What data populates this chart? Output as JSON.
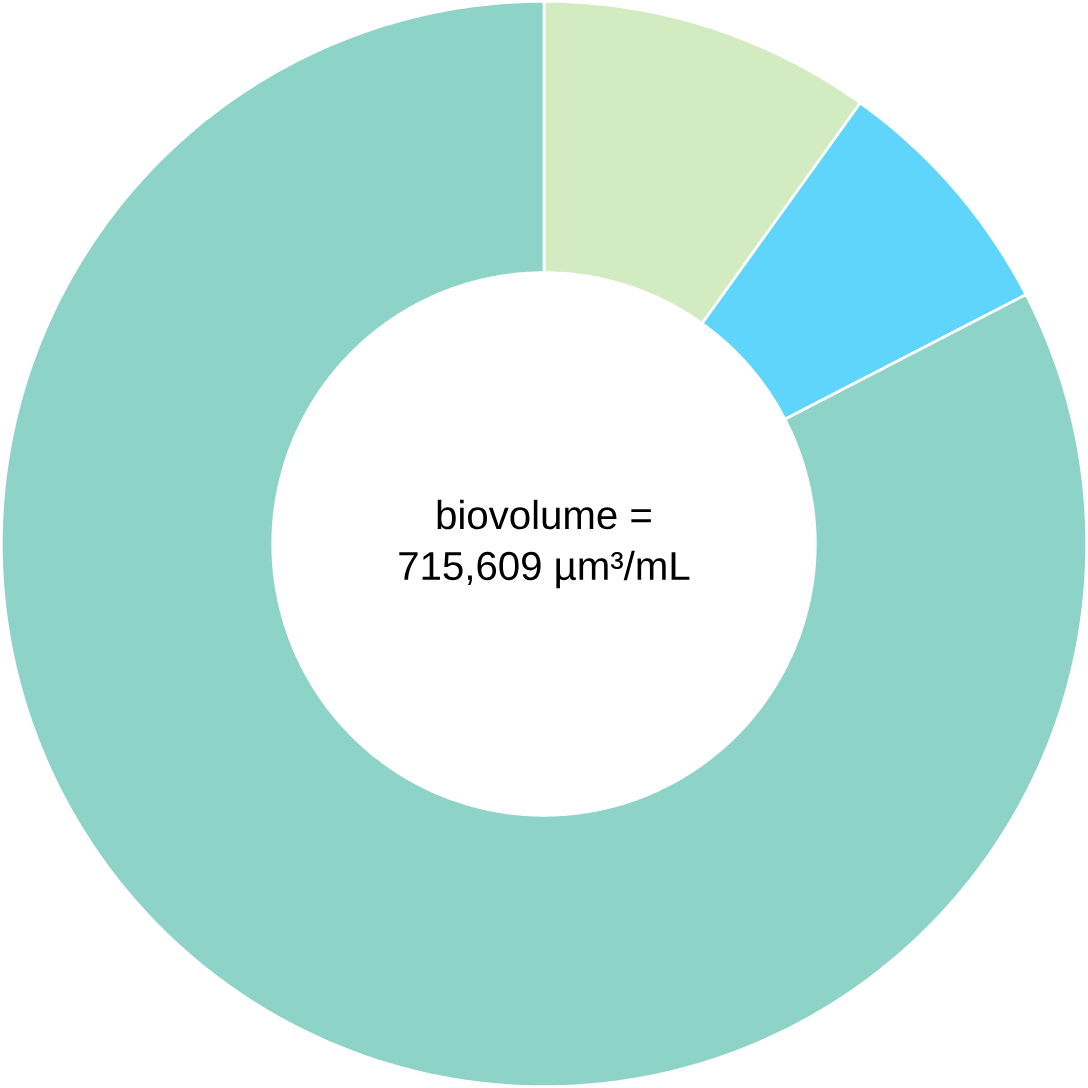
{
  "chart_data": {
    "type": "donut",
    "categories": [
      null,
      null,
      null
    ],
    "values": [
      9.9,
      7.5,
      82.6
    ],
    "colors": [
      "#d3ebc1",
      "#60d5fc",
      "#8dd3c7"
    ],
    "annotations": [
      "biovolume =",
      "715,609 µm³/mL"
    ]
  }
}
